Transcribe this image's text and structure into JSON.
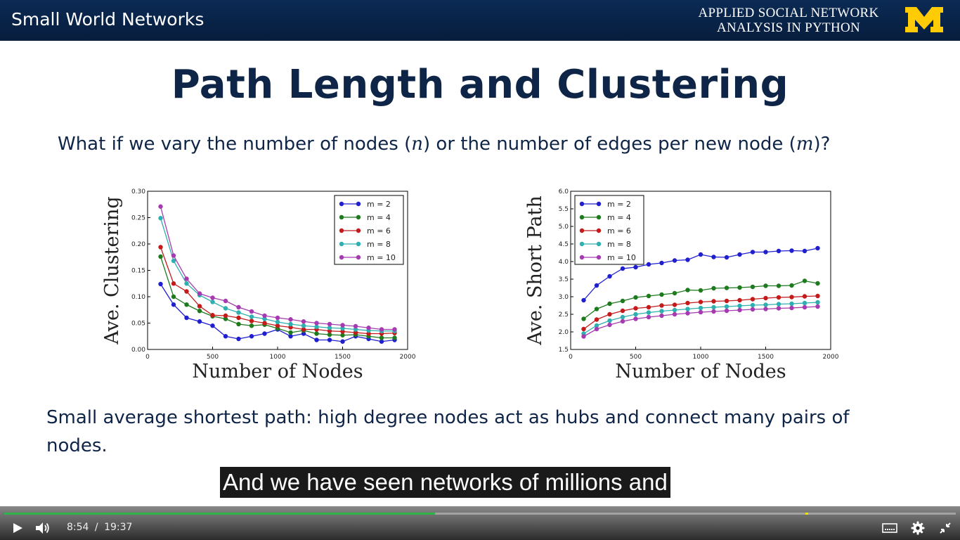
{
  "header": {
    "title": "Small World Networks",
    "course_line1": "APPLIED SOCIAL NETWORK",
    "course_line2": "ANALYSIS IN PYTHON"
  },
  "slide": {
    "title": "Path Length and Clustering",
    "question_prefix": "What if we vary the number of nodes (",
    "var_n": "n",
    "question_mid": ") or the number of edges per new node (",
    "var_m": "m",
    "question_suffix": ")?",
    "body_text": "Small average shortest path: high degree nodes act as hubs and connect many pairs of nodes."
  },
  "caption": {
    "text": "And we have seen networks of millions and"
  },
  "player": {
    "current_time": "8:54",
    "separator": "/",
    "duration": "19:37",
    "progress_fraction": 0.453,
    "marker_fraction": 0.842,
    "icons": [
      "play-icon",
      "volume-icon",
      "captions-icon",
      "gear-icon",
      "exit-fullscreen-icon"
    ]
  },
  "colors": {
    "header_bg": "#0b2a54",
    "logo_maize": "#ffcb05",
    "title_navy": "#0f2547",
    "progress_green": "#2fb44a"
  },
  "chart_data": [
    {
      "type": "line",
      "xlabel": "Number of Nodes",
      "ylabel": "Ave. Clustering",
      "xlim": [
        0,
        2000
      ],
      "ylim": [
        0,
        0.3
      ],
      "xticks": [
        0,
        500,
        1000,
        1500,
        2000
      ],
      "yticks": [
        0.0,
        0.05,
        0.1,
        0.15,
        0.2,
        0.25,
        0.3
      ],
      "ytick_labels": [
        "0.00",
        "0.05",
        "0.10",
        "0.15",
        "0.20",
        "0.25",
        "0.30"
      ],
      "grid": false,
      "legend": "top-right",
      "x": [
        100,
        200,
        300,
        400,
        500,
        600,
        700,
        800,
        900,
        1000,
        1100,
        1200,
        1300,
        1400,
        1500,
        1600,
        1700,
        1800,
        1900
      ],
      "series": [
        {
          "name": "m = 2",
          "color": "#1f1fd0",
          "values": [
            0.124,
            0.085,
            0.06,
            0.053,
            0.045,
            0.025,
            0.02,
            0.025,
            0.03,
            0.038,
            0.025,
            0.03,
            0.018,
            0.018,
            0.015,
            0.025,
            0.02,
            0.015,
            0.018
          ]
        },
        {
          "name": "m = 4",
          "color": "#1d7a1d",
          "values": [
            0.176,
            0.1,
            0.085,
            0.073,
            0.063,
            0.058,
            0.048,
            0.045,
            0.047,
            0.04,
            0.032,
            0.036,
            0.03,
            0.028,
            0.027,
            0.028,
            0.025,
            0.022,
            0.022
          ]
        },
        {
          "name": "m = 6",
          "color": "#c41a1a",
          "values": [
            0.194,
            0.125,
            0.11,
            0.082,
            0.065,
            0.064,
            0.06,
            0.054,
            0.05,
            0.045,
            0.042,
            0.038,
            0.038,
            0.035,
            0.034,
            0.032,
            0.03,
            0.03,
            0.031
          ]
        },
        {
          "name": "m = 8",
          "color": "#2fb0b0",
          "values": [
            0.249,
            0.168,
            0.125,
            0.103,
            0.09,
            0.078,
            0.07,
            0.062,
            0.058,
            0.052,
            0.048,
            0.045,
            0.043,
            0.041,
            0.04,
            0.038,
            0.036,
            0.035,
            0.035
          ]
        },
        {
          "name": "m = 10",
          "color": "#a63ab0",
          "values": [
            0.271,
            0.178,
            0.134,
            0.106,
            0.098,
            0.092,
            0.08,
            0.072,
            0.064,
            0.06,
            0.057,
            0.053,
            0.05,
            0.048,
            0.046,
            0.044,
            0.041,
            0.038,
            0.038
          ]
        }
      ]
    },
    {
      "type": "line",
      "xlabel": "Number of Nodes",
      "ylabel": "Ave. Short Path",
      "xlim": [
        0,
        2000
      ],
      "ylim": [
        1.5,
        6.0
      ],
      "xticks": [
        0,
        500,
        1000,
        1500,
        2000
      ],
      "yticks": [
        1.5,
        2.0,
        2.5,
        3.0,
        3.5,
        4.0,
        4.5,
        5.0,
        5.5,
        6.0
      ],
      "ytick_labels": [
        "1.5",
        "2.0",
        "2.5",
        "3.0",
        "3.5",
        "4.0",
        "4.5",
        "5.0",
        "5.5",
        "6.0"
      ],
      "grid": false,
      "legend": "top-left",
      "x": [
        100,
        200,
        300,
        400,
        500,
        600,
        700,
        800,
        900,
        1000,
        1100,
        1200,
        1300,
        1400,
        1500,
        1600,
        1700,
        1800,
        1900
      ],
      "series": [
        {
          "name": "m = 2",
          "color": "#1f1fd0",
          "values": [
            2.9,
            3.32,
            3.58,
            3.8,
            3.84,
            3.92,
            3.96,
            4.03,
            4.05,
            4.2,
            4.13,
            4.12,
            4.2,
            4.27,
            4.27,
            4.3,
            4.31,
            4.3,
            4.38
          ]
        },
        {
          "name": "m = 4",
          "color": "#1d7a1d",
          "values": [
            2.37,
            2.65,
            2.8,
            2.88,
            2.98,
            3.02,
            3.06,
            3.1,
            3.19,
            3.18,
            3.24,
            3.25,
            3.26,
            3.28,
            3.31,
            3.31,
            3.32,
            3.45,
            3.38
          ]
        },
        {
          "name": "m = 6",
          "color": "#c41a1a",
          "values": [
            2.08,
            2.35,
            2.5,
            2.6,
            2.67,
            2.7,
            2.75,
            2.77,
            2.82,
            2.85,
            2.87,
            2.88,
            2.9,
            2.93,
            2.96,
            2.98,
            2.99,
            3.01,
            3.02
          ]
        },
        {
          "name": "m = 8",
          "color": "#2fb0b0",
          "values": [
            1.95,
            2.18,
            2.32,
            2.42,
            2.5,
            2.55,
            2.59,
            2.62,
            2.65,
            2.68,
            2.7,
            2.72,
            2.74,
            2.76,
            2.77,
            2.79,
            2.8,
            2.82,
            2.84
          ]
        },
        {
          "name": "m = 10",
          "color": "#a63ab0",
          "values": [
            1.87,
            2.08,
            2.2,
            2.3,
            2.37,
            2.42,
            2.46,
            2.5,
            2.53,
            2.56,
            2.58,
            2.6,
            2.62,
            2.64,
            2.65,
            2.67,
            2.68,
            2.7,
            2.72
          ]
        }
      ]
    }
  ]
}
